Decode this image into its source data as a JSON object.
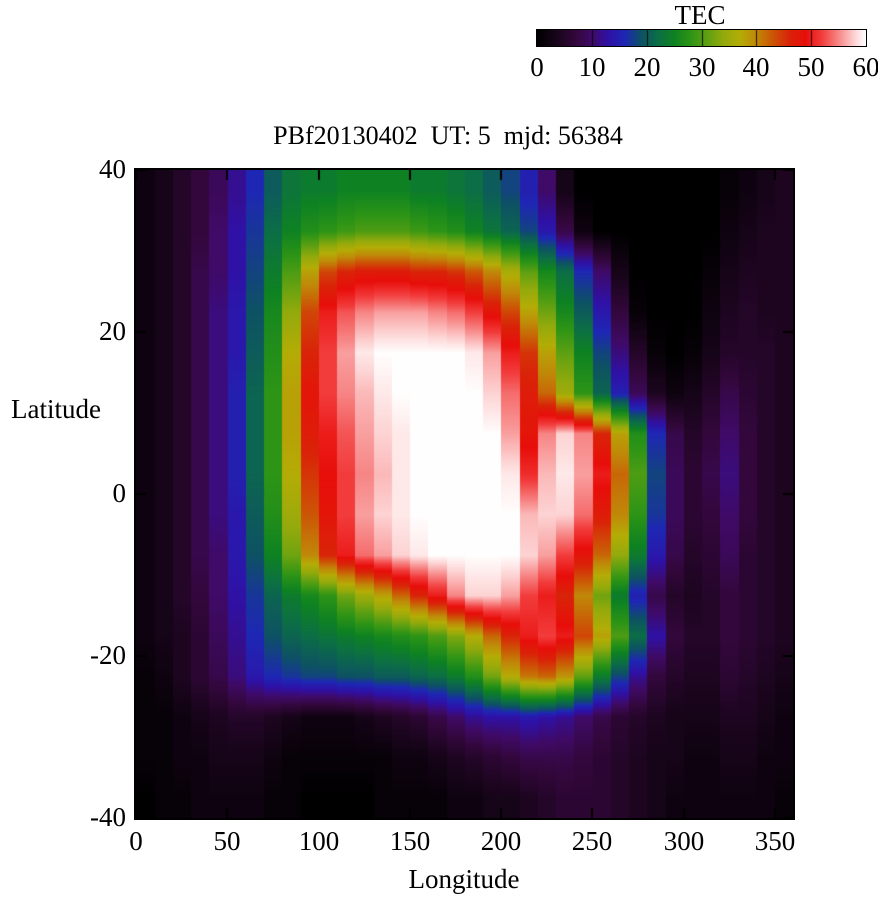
{
  "title": "PBf20130402  UT: 5  mjd: 56384",
  "colorbar": {
    "title": "TEC",
    "ticks": [
      0,
      10,
      20,
      30,
      40,
      50,
      60
    ],
    "minor_ticks": [
      10,
      20,
      30,
      40,
      50
    ],
    "range": [
      0,
      60
    ]
  },
  "axes": {
    "x": {
      "label": "Longitude",
      "ticks": [
        0,
        50,
        100,
        150,
        200,
        250,
        300,
        350
      ],
      "range": [
        0,
        360
      ]
    },
    "y": {
      "label": "Latitude",
      "ticks": [
        40,
        20,
        0,
        -20,
        -40
      ],
      "range": [
        -40,
        40
      ]
    }
  },
  "chart_data": {
    "type": "heatmap",
    "title": "PBf20130402  UT: 5  mjd: 56384",
    "xlabel": "Longitude",
    "ylabel": "Latitude",
    "colorbar_label": "TEC",
    "color_range": [
      0,
      60
    ],
    "x_range": [
      0,
      360
    ],
    "y_range": [
      -40,
      40
    ],
    "lon_step": 10,
    "lat_step": 5,
    "lat_order": "north_to_south",
    "grid": {
      "lon_cells": 36,
      "lat_cells": 16
    },
    "colormap_stops": [
      [
        0,
        "#000000"
      ],
      [
        4,
        "#1d0520"
      ],
      [
        7,
        "#33073c"
      ],
      [
        10,
        "#3f0a68"
      ],
      [
        13,
        "#2f11a6"
      ],
      [
        16,
        "#1e27b4"
      ],
      [
        19,
        "#0d5264"
      ],
      [
        22,
        "#0c6e46"
      ],
      [
        25,
        "#0e8222"
      ],
      [
        28,
        "#2d9416"
      ],
      [
        31,
        "#5ea012"
      ],
      [
        34,
        "#93aa0c"
      ],
      [
        37,
        "#b4ac06"
      ],
      [
        40,
        "#c08908"
      ],
      [
        43,
        "#cc5606"
      ],
      [
        46,
        "#d92408"
      ],
      [
        49,
        "#e80e0a"
      ],
      [
        52,
        "#f23c3c"
      ],
      [
        55,
        "#f78585"
      ],
      [
        58,
        "#fdd3d3"
      ],
      [
        60,
        "#fffefe"
      ]
    ],
    "values": [
      [
        2,
        3,
        5,
        7,
        9,
        12,
        16,
        20,
        23,
        24,
        24,
        25,
        25,
        25,
        25,
        24,
        24,
        23,
        22,
        20,
        18,
        15,
        10,
        3,
        0,
        0,
        0,
        0,
        0,
        0,
        0,
        0,
        1,
        2,
        3,
        4
      ],
      [
        2,
        3,
        5,
        7,
        10,
        13,
        17,
        22,
        25,
        27,
        28,
        29,
        30,
        30,
        30,
        29,
        28,
        27,
        25,
        23,
        21,
        18,
        14,
        8,
        2,
        0,
        0,
        0,
        0,
        0,
        0,
        0,
        2,
        3,
        4,
        4
      ],
      [
        2,
        3,
        5,
        8,
        10,
        13,
        18,
        24,
        30,
        38,
        44,
        46,
        47,
        47,
        47,
        46,
        46,
        45,
        43,
        40,
        36,
        31,
        26,
        22,
        16,
        10,
        3,
        0,
        0,
        0,
        0,
        1,
        3,
        4,
        4,
        4
      ],
      [
        2,
        3,
        5,
        8,
        11,
        14,
        19,
        26,
        34,
        44,
        50,
        53,
        55,
        56,
        56,
        56,
        55,
        54,
        52,
        48,
        44,
        38,
        32,
        26,
        20,
        14,
        7,
        1,
        0,
        0,
        0,
        2,
        4,
        5,
        4,
        4
      ],
      [
        2,
        3,
        5,
        8,
        11,
        14,
        20,
        27,
        37,
        46,
        52,
        56,
        59,
        60,
        60,
        60,
        60,
        60,
        59,
        56,
        50,
        45,
        38,
        31,
        25,
        18,
        11,
        5,
        1,
        0,
        1,
        3,
        5,
        5,
        5,
        4
      ],
      [
        2,
        3,
        5,
        8,
        11,
        15,
        21,
        28,
        38,
        48,
        52,
        55,
        57,
        59,
        60,
        60,
        60,
        60,
        60,
        58,
        54,
        47,
        42,
        35,
        28,
        21,
        15,
        9,
        4,
        2,
        3,
        5,
        8,
        6,
        5,
        4
      ],
      [
        2,
        3,
        5,
        8,
        11,
        15,
        21,
        28,
        38,
        47,
        50,
        53,
        56,
        58,
        59,
        60,
        60,
        60,
        60,
        60,
        56,
        48,
        55,
        58,
        55,
        46,
        38,
        27,
        16,
        8,
        5,
        7,
        10,
        7,
        5,
        4
      ],
      [
        2,
        3,
        5,
        8,
        11,
        15,
        21,
        28,
        37,
        45,
        49,
        52,
        55,
        57,
        59,
        60,
        60,
        60,
        60,
        60,
        59,
        51,
        57,
        59,
        56,
        50,
        42,
        30,
        18,
        9,
        6,
        8,
        11,
        7,
        5,
        4
      ],
      [
        2,
        3,
        5,
        8,
        11,
        14,
        20,
        27,
        35,
        43,
        48,
        52,
        56,
        58,
        59,
        60,
        60,
        60,
        60,
        60,
        60,
        57,
        58,
        58,
        54,
        47,
        40,
        28,
        17,
        9,
        6,
        7,
        10,
        7,
        5,
        4
      ],
      [
        2,
        3,
        5,
        8,
        10,
        14,
        19,
        25,
        32,
        40,
        46,
        50,
        54,
        56,
        58,
        59,
        60,
        60,
        60,
        60,
        60,
        58,
        56,
        52,
        48,
        42,
        34,
        24,
        14,
        8,
        5,
        6,
        9,
        6,
        5,
        4
      ],
      [
        2,
        3,
        5,
        7,
        10,
        13,
        17,
        21,
        24,
        26,
        28,
        32,
        35,
        38,
        42,
        46,
        50,
        55,
        58,
        58,
        56,
        52,
        50,
        46,
        40,
        32,
        24,
        15,
        8,
        5,
        4,
        5,
        7,
        6,
        5,
        4
      ],
      [
        2,
        3,
        4,
        6,
        9,
        12,
        16,
        19,
        21,
        22,
        23,
        24,
        25,
        26,
        27,
        28,
        30,
        33,
        37,
        42,
        46,
        50,
        52,
        50,
        44,
        38,
        30,
        22,
        13,
        7,
        5,
        5,
        7,
        6,
        5,
        4
      ],
      [
        1,
        2,
        4,
        6,
        8,
        11,
        14,
        16,
        17,
        18,
        18,
        19,
        19,
        20,
        20,
        21,
        22,
        24,
        27,
        32,
        37,
        41,
        42,
        39,
        31,
        24,
        18,
        12,
        7,
        5,
        4,
        4,
        6,
        5,
        4,
        3
      ],
      [
        1,
        1,
        2,
        3,
        4,
        5,
        5,
        4,
        3,
        2,
        2,
        2,
        3,
        4,
        5,
        6,
        8,
        10,
        12,
        13,
        13,
        14,
        13,
        12,
        10,
        8,
        6,
        5,
        4,
        3,
        3,
        3,
        4,
        4,
        3,
        2
      ],
      [
        1,
        1,
        2,
        2,
        3,
        3,
        3,
        2,
        1,
        1,
        1,
        1,
        1,
        1,
        2,
        2,
        3,
        4,
        5,
        6,
        7,
        8,
        8,
        8,
        7,
        6,
        5,
        4,
        3,
        3,
        2,
        2,
        3,
        3,
        2,
        2
      ],
      [
        0,
        1,
        1,
        2,
        2,
        2,
        2,
        1,
        1,
        0,
        0,
        0,
        0,
        1,
        1,
        1,
        1,
        2,
        2,
        3,
        3,
        4,
        5,
        6,
        6,
        6,
        5,
        4,
        3,
        2,
        2,
        2,
        2,
        2,
        2,
        1
      ]
    ]
  }
}
